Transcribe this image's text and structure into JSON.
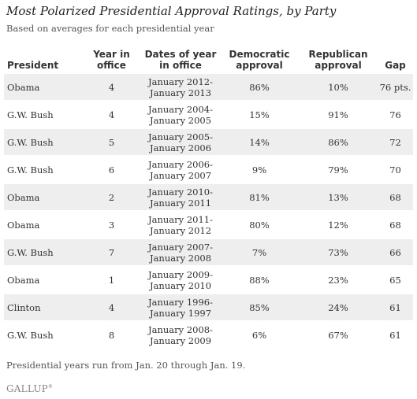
{
  "title": "Most Polarized Presidential Approval Ratings, by Party",
  "subtitle": "Based on averages for each presidential year",
  "table": {
    "headers": {
      "president": "President",
      "year_line1": "Year in",
      "year_line2": "office",
      "dates_line1": "Dates of year",
      "dates_line2": "in office",
      "dem_line1": "Democratic",
      "dem_line2": "approval",
      "rep_line1": "Republican",
      "rep_line2": "approval",
      "gap": "Gap"
    },
    "rows": [
      {
        "president": "Obama",
        "year": "4",
        "date_start": "January 2012-",
        "date_end": "January 2013",
        "dem": "86%",
        "rep": "10%",
        "gap": "76 pts."
      },
      {
        "president": "G.W. Bush",
        "year": "4",
        "date_start": "January 2004-",
        "date_end": "January 2005",
        "dem": "15%",
        "rep": "91%",
        "gap": "76"
      },
      {
        "president": "G.W. Bush",
        "year": "5",
        "date_start": "January 2005-",
        "date_end": "January 2006",
        "dem": "14%",
        "rep": "86%",
        "gap": "72"
      },
      {
        "president": "G.W. Bush",
        "year": "6",
        "date_start": "January 2006-",
        "date_end": "January 2007",
        "dem": "9%",
        "rep": "79%",
        "gap": "70"
      },
      {
        "president": "Obama",
        "year": "2",
        "date_start": "January 2010-",
        "date_end": "January 2011",
        "dem": "81%",
        "rep": "13%",
        "gap": "68"
      },
      {
        "president": "Obama",
        "year": "3",
        "date_start": "January 2011-",
        "date_end": "January 2012",
        "dem": "80%",
        "rep": "12%",
        "gap": "68"
      },
      {
        "president": "G.W. Bush",
        "year": "7",
        "date_start": "January 2007-",
        "date_end": "January 2008",
        "dem": "7%",
        "rep": "73%",
        "gap": "66"
      },
      {
        "president": "Obama",
        "year": "1",
        "date_start": "January 2009-",
        "date_end": "January 2010",
        "dem": "88%",
        "rep": "23%",
        "gap": "65"
      },
      {
        "president": "Clinton",
        "year": "4",
        "date_start": "January 1996-",
        "date_end": "January 1997",
        "dem": "85%",
        "rep": "24%",
        "gap": "61"
      },
      {
        "president": "G.W. Bush",
        "year": "8",
        "date_start": "January 2008-",
        "date_end": "January 2009",
        "dem": "6%",
        "rep": "67%",
        "gap": "61"
      }
    ]
  },
  "footnote": "Presidential years run from Jan. 20 through Jan. 19.",
  "logo": {
    "text": "GALLUP",
    "mark": "®"
  },
  "colors": {
    "row_shade": "#eeeeee",
    "text": "#333333"
  }
}
